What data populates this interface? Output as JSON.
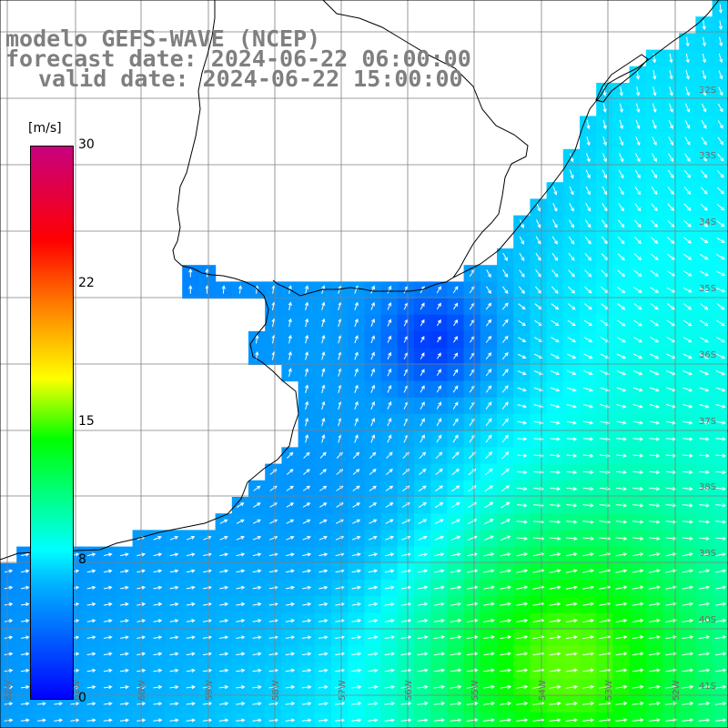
{
  "titles": {
    "line1": "modelo GEFS-WAVE (NCEP)",
    "line2": "forecast date: 2024-06-22 06:00:00",
    "line3": "valid date: 2024-06-22 15:00:00"
  },
  "colorbar": {
    "unit": "[m/s]",
    "ticks": [
      "30",
      "22",
      "15",
      "8",
      "0"
    ],
    "tick_values": [
      30,
      22,
      15,
      8,
      0
    ],
    "range": [
      0,
      30
    ],
    "colors": [
      "#0000ff",
      "#00b4ff",
      "#00ffff",
      "#00ff00",
      "#ffff00",
      "#ff8000",
      "#ff0000",
      "#c8007f"
    ]
  },
  "lat_labels": [
    "32S",
    "33S",
    "34S",
    "35S",
    "36S",
    "37S",
    "38S",
    "39S",
    "40S",
    "41S"
  ],
  "lon_labels": [
    "62W",
    "61W",
    "60W",
    "59W",
    "58W",
    "57W",
    "56W",
    "55W",
    "54W",
    "53W",
    "52W"
  ],
  "colors": {
    "land": "#ffffff",
    "coast": "#000000",
    "grid": "#7f7f7f",
    "title": "#7f7f7f",
    "arrow": "#ffffff"
  }
}
